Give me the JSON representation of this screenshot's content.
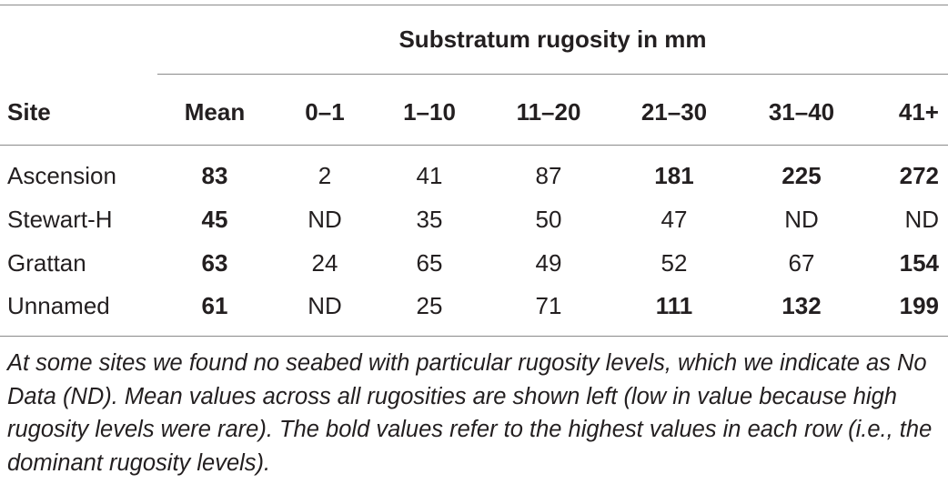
{
  "table": {
    "group_header": "Substratum rugosity in mm",
    "columns": [
      "Site",
      "Mean",
      "0–1",
      "1–10",
      "11–20",
      "21–30",
      "31–40",
      "41+"
    ],
    "rows": [
      {
        "site": "Ascension",
        "cells": [
          {
            "v": "83",
            "b": true
          },
          {
            "v": "2",
            "b": false
          },
          {
            "v": "41",
            "b": false
          },
          {
            "v": "87",
            "b": false
          },
          {
            "v": "181",
            "b": true
          },
          {
            "v": "225",
            "b": true
          },
          {
            "v": "272",
            "b": true
          }
        ]
      },
      {
        "site": "Stewart-H",
        "cells": [
          {
            "v": "45",
            "b": true
          },
          {
            "v": "ND",
            "b": false
          },
          {
            "v": "35",
            "b": false
          },
          {
            "v": "50",
            "b": false
          },
          {
            "v": "47",
            "b": false
          },
          {
            "v": "ND",
            "b": false
          },
          {
            "v": "ND",
            "b": false
          }
        ]
      },
      {
        "site": "Grattan",
        "cells": [
          {
            "v": "63",
            "b": true
          },
          {
            "v": "24",
            "b": false
          },
          {
            "v": "65",
            "b": false
          },
          {
            "v": "49",
            "b": false
          },
          {
            "v": "52",
            "b": false
          },
          {
            "v": "67",
            "b": false
          },
          {
            "v": "154",
            "b": true
          }
        ]
      },
      {
        "site": "Unnamed",
        "cells": [
          {
            "v": "61",
            "b": true
          },
          {
            "v": "ND",
            "b": false
          },
          {
            "v": "25",
            "b": false
          },
          {
            "v": "71",
            "b": false
          },
          {
            "v": "111",
            "b": true
          },
          {
            "v": "132",
            "b": true
          },
          {
            "v": "199",
            "b": true
          }
        ]
      }
    ],
    "footnote": "At some sites we found no seabed with particular rugosity levels, which we indicate as No Data (ND). Mean values across all rugosities are shown left (low in value because high rugosity levels were rare). The bold values refer to the highest values in each row (i.e., the dominant rugosity levels)."
  }
}
